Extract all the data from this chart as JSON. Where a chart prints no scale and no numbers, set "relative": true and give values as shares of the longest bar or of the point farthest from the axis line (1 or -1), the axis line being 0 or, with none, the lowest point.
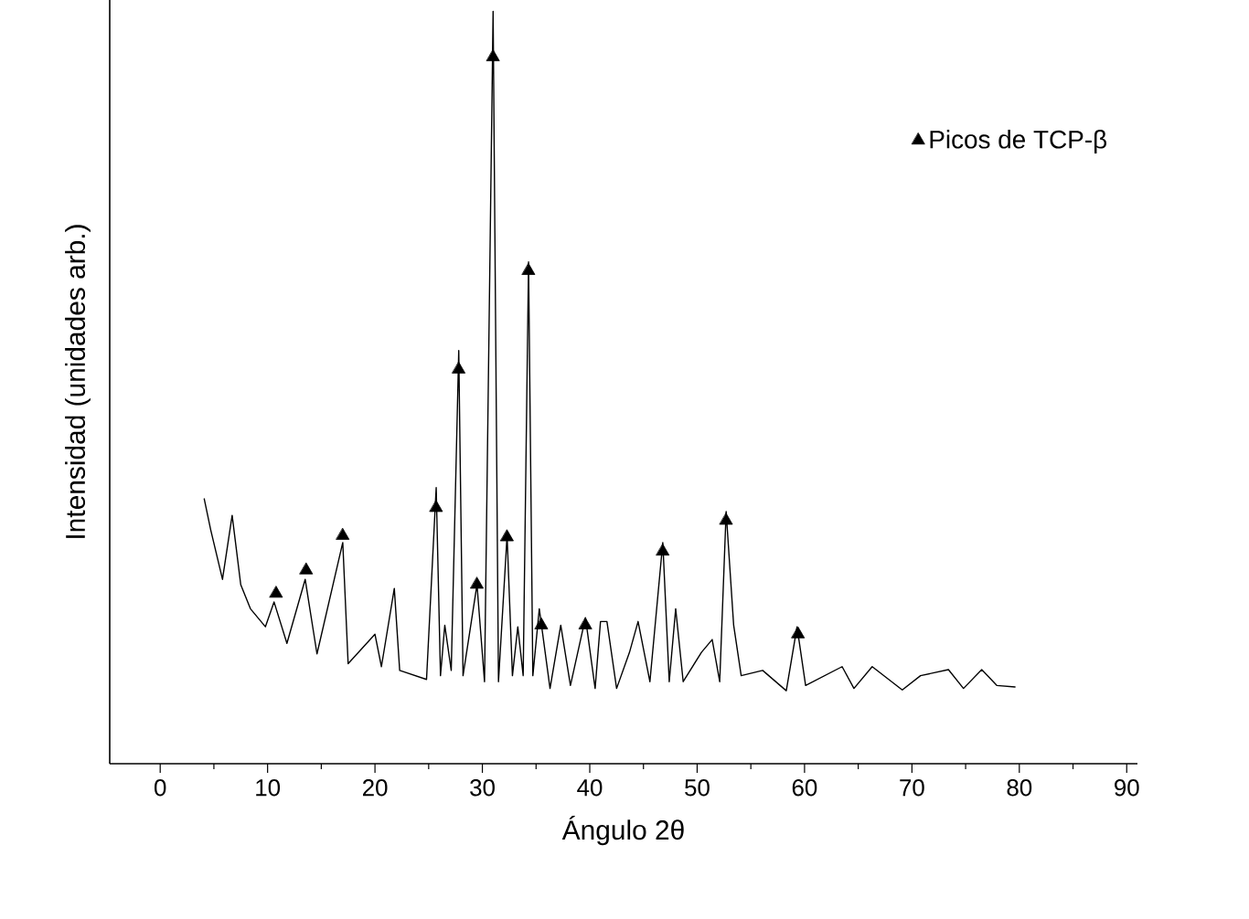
{
  "chart_data": {
    "type": "line",
    "xlabel": "Ángulo 2θ",
    "ylabel": "Intensidad (unidades arb.)",
    "relative": true,
    "xlim": [
      -4.7,
      91
    ],
    "xticks": [
      0,
      10,
      20,
      30,
      40,
      50,
      60,
      70,
      80,
      90
    ],
    "legend": "top right",
    "grid": false,
    "series": [
      {
        "color": "#000000",
        "marker": "none",
        "x": [
          4.1,
          4.7,
          5.8,
          6.7,
          7.5,
          8.4,
          9.8,
          10.6,
          11.8,
          13.5,
          14.6,
          17.0,
          17.5,
          20.0,
          20.6,
          21.8,
          22.3,
          24.8,
          25.7,
          26.1,
          26.5,
          27.1,
          27.8,
          28.2,
          29.5,
          30.2,
          31.0,
          31.5,
          32.3,
          32.8,
          33.3,
          33.8,
          34.3,
          34.7,
          35.3,
          36.3,
          37.3,
          38.2,
          39.6,
          40.5,
          41.0,
          41.6,
          42.5,
          43.7,
          44.5,
          45.6,
          46.8,
          47.4,
          48.0,
          48.7,
          50.4,
          51.4,
          52.1,
          52.7,
          53.4,
          54.1,
          56.1,
          58.3,
          59.3,
          60.1,
          63.5,
          64.6,
          66.3,
          69.1,
          70.8,
          73.4,
          74.8,
          76.5,
          77.9,
          79.6
        ],
        "values": [
          0.352,
          0.311,
          0.245,
          0.33,
          0.238,
          0.206,
          0.182,
          0.215,
          0.16,
          0.245,
          0.146,
          0.294,
          0.133,
          0.172,
          0.129,
          0.233,
          0.124,
          0.112,
          0.367,
          0.117,
          0.184,
          0.124,
          0.549,
          0.117,
          0.238,
          0.109,
          1.0,
          0.109,
          0.303,
          0.117,
          0.182,
          0.117,
          0.667,
          0.117,
          0.206,
          0.1,
          0.184,
          0.104,
          0.194,
          0.1,
          0.189,
          0.189,
          0.1,
          0.148,
          0.189,
          0.109,
          0.294,
          0.109,
          0.206,
          0.109,
          0.148,
          0.165,
          0.109,
          0.335,
          0.184,
          0.117,
          0.124,
          0.097,
          0.182,
          0.104,
          0.129,
          0.1,
          0.129,
          0.098,
          0.117,
          0.125,
          0.1,
          0.125,
          0.104,
          0.102
        ]
      },
      {
        "type": "scatter",
        "name": "Picos de TCP-β",
        "color": "#000000",
        "marker": "triangle",
        "x": [
          10.8,
          13.6,
          17.0,
          25.7,
          27.8,
          29.5,
          31.0,
          32.3,
          34.3,
          35.5,
          39.6,
          46.8,
          52.7,
          59.4
        ],
        "values": [
          0.226,
          0.257,
          0.303,
          0.34,
          0.524,
          0.238,
          0.939,
          0.301,
          0.655,
          0.184,
          0.184,
          0.282,
          0.323,
          0.172
        ]
      }
    ]
  }
}
